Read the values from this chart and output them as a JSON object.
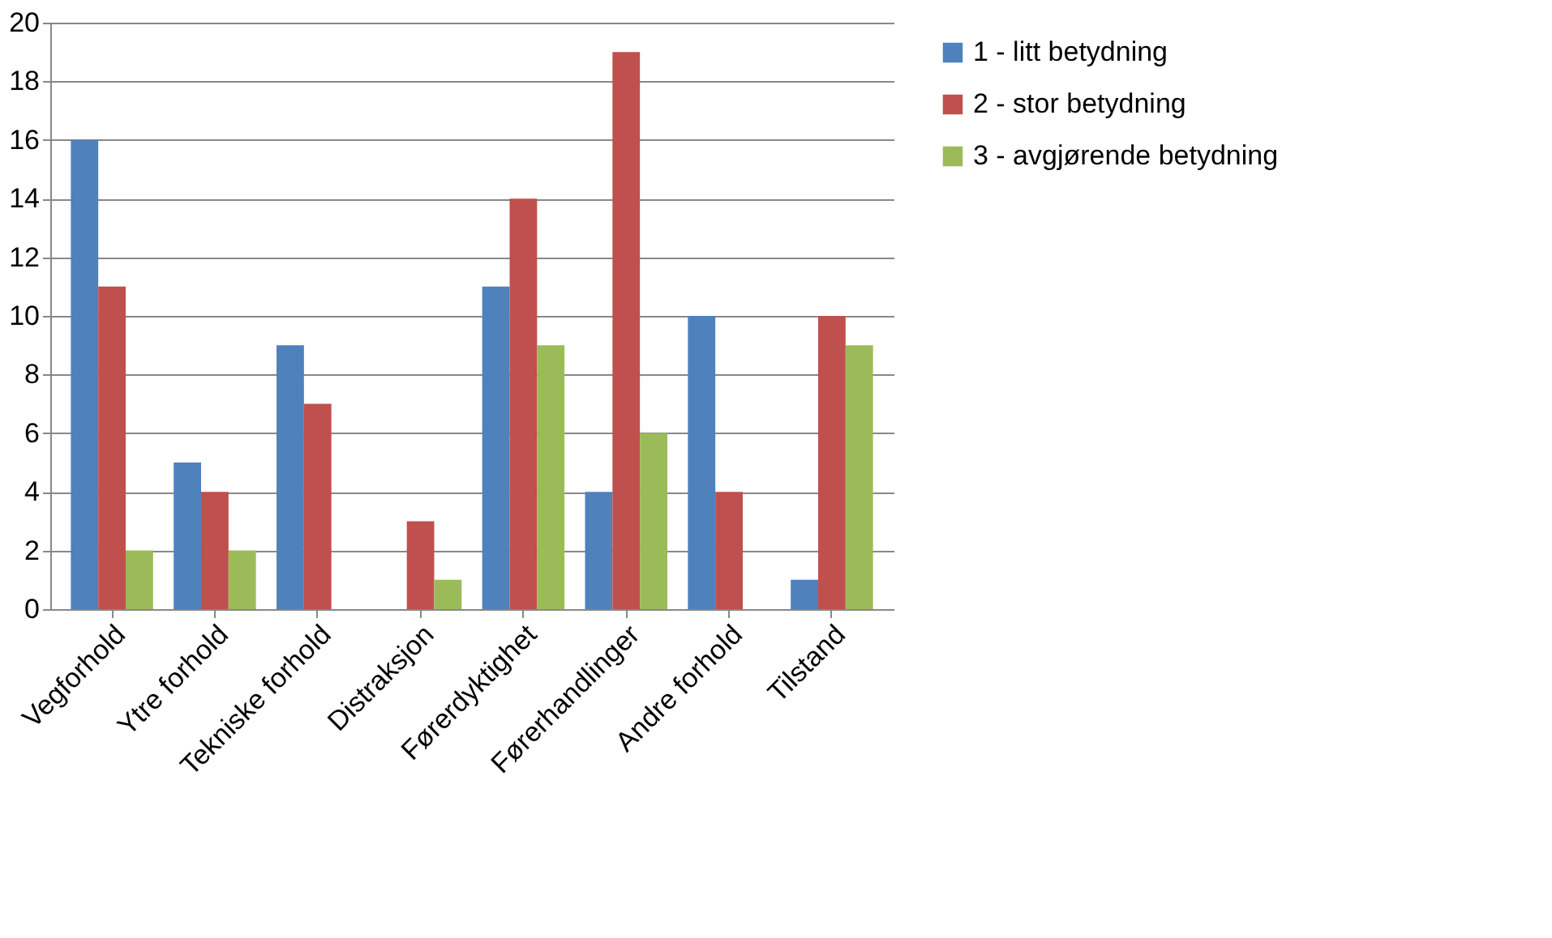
{
  "chart_data": {
    "type": "bar",
    "categories": [
      "Vegforhold",
      "Ytre forhold",
      "Tekniske forhold",
      "Distraksjon",
      "Førerdyktighet",
      "Førerhandlinger",
      "Andre forhold",
      "Tilstand"
    ],
    "series": [
      {
        "name": "1 - litt betydning",
        "color": "#4f81bd",
        "values": [
          16,
          5,
          9,
          0,
          11,
          4,
          10,
          1
        ]
      },
      {
        "name": "2 - stor betydning",
        "color": "#c0504d",
        "values": [
          11,
          4,
          7,
          3,
          14,
          19,
          4,
          10
        ]
      },
      {
        "name": "3 - avgjørende betydning",
        "color": "#9bbb59",
        "values": [
          2,
          2,
          0,
          1,
          9,
          6,
          0,
          9
        ]
      }
    ],
    "ylim": [
      0,
      20
    ],
    "yticks": [
      0,
      2,
      4,
      6,
      8,
      10,
      12,
      14,
      16,
      18,
      20
    ],
    "grid": "y",
    "legend": "right"
  }
}
